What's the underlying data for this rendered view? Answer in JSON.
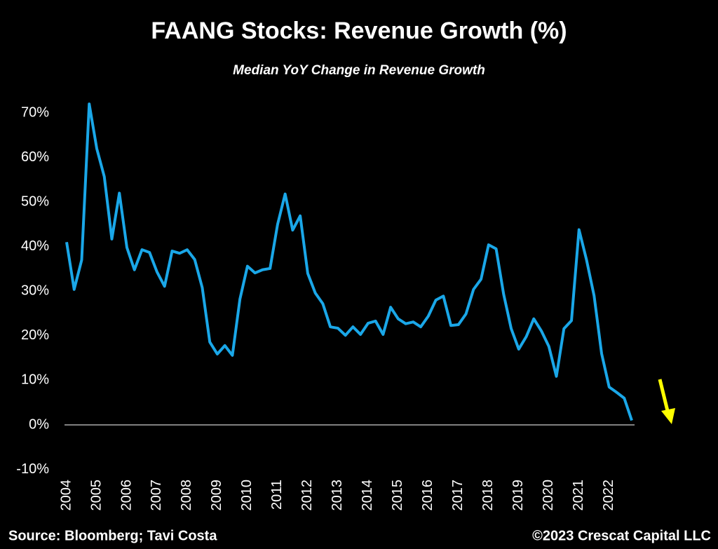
{
  "chart_data": {
    "type": "line",
    "title": "FAANG Stocks: Revenue Growth (%)",
    "subtitle": "Median YoY Change in Revenue Growth",
    "source": "Source: Bloomberg; Tavi Costa",
    "credit": "©2023 Crescat Capital LLC",
    "categories": [
      "2004",
      null,
      null,
      null,
      "2005",
      null,
      null,
      null,
      "2006",
      null,
      null,
      null,
      "2007",
      null,
      null,
      null,
      "2008",
      null,
      null,
      null,
      "2009",
      null,
      null,
      null,
      "2010",
      null,
      null,
      null,
      "2011",
      null,
      null,
      null,
      "2012",
      null,
      null,
      null,
      "2013",
      null,
      null,
      null,
      "2014",
      null,
      null,
      null,
      "2015",
      null,
      null,
      null,
      "2016",
      null,
      null,
      null,
      "2017",
      null,
      null,
      null,
      "2018",
      null,
      null,
      null,
      "2019",
      null,
      null,
      null,
      "2020",
      null,
      null,
      null,
      "2021",
      null,
      null,
      null,
      "2022",
      null,
      null,
      null
    ],
    "series": [
      {
        "name": "Median YoY Change in Revenue Growth",
        "color": "#1aa7e8",
        "values": [
          41,
          30.4,
          37,
          72,
          62,
          55.7,
          41.7,
          52,
          39.8,
          34.8,
          39.3,
          38.7,
          34.3,
          31.1,
          39,
          38.5,
          39.3,
          37.1,
          30.8,
          18.6,
          15.9,
          17.8,
          15.6,
          28.2,
          35.6,
          34.1,
          34.8,
          35.1,
          45,
          51.8,
          43.7,
          46.9,
          34,
          29.6,
          27.2,
          22,
          21.7,
          20.1,
          22,
          20.3,
          22.8,
          23.3,
          20.3,
          26.4,
          23.8,
          22.7,
          23.1,
          22,
          24.4,
          28,
          28.9,
          22.3,
          22.5,
          24.9,
          30.4,
          32.7,
          40.4,
          39.5,
          29.3,
          21.6,
          17,
          19.8,
          23.8,
          21.1,
          17.6,
          10.9,
          21.6,
          23.4,
          43.8,
          37,
          29,
          16,
          8.5,
          7.3,
          6,
          1
        ]
      }
    ],
    "ylim": [
      -10,
      75
    ],
    "yticks": [
      {
        "value": -10,
        "label": "-10%"
      },
      {
        "value": 0,
        "label": "0%"
      },
      {
        "value": 10,
        "label": "10%"
      },
      {
        "value": 20,
        "label": "20%"
      },
      {
        "value": 30,
        "label": "30%"
      },
      {
        "value": 40,
        "label": "40%"
      },
      {
        "value": 50,
        "label": "50%"
      },
      {
        "value": 60,
        "label": "60%"
      },
      {
        "value": 70,
        "label": "70%"
      }
    ],
    "grid": false
  }
}
